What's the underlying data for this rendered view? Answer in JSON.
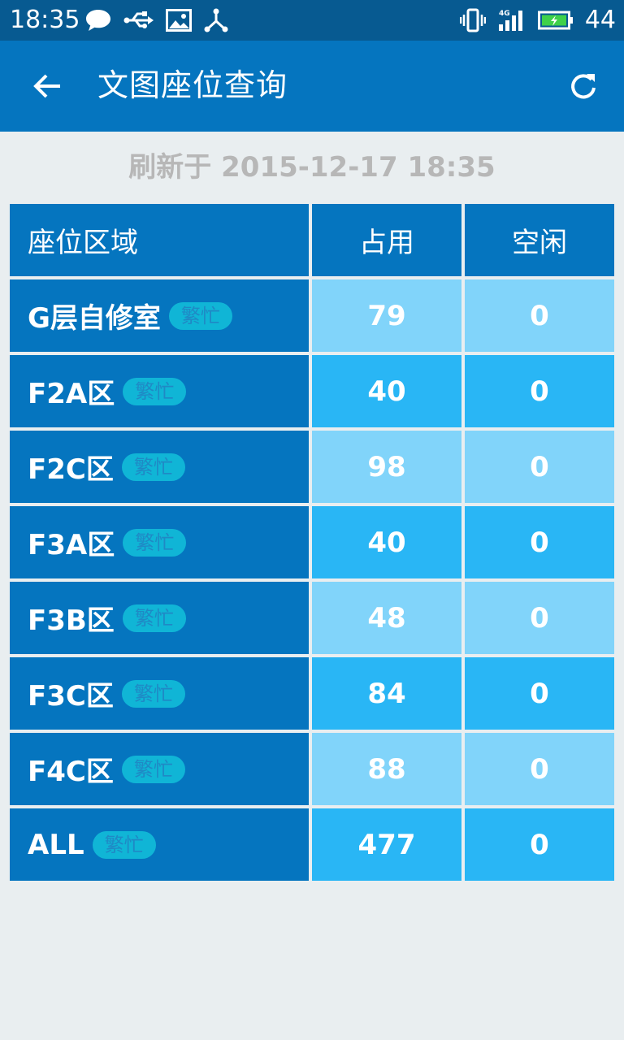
{
  "status_bar": {
    "time": "18:35",
    "battery_level": "44",
    "icons_left": [
      "chat-bubble-icon",
      "usb-icon",
      "image-icon",
      "share-icon"
    ],
    "icons_right": [
      "vibrate-icon",
      "signal-4g-icon",
      "battery-charging-icon"
    ],
    "network_label": "4G"
  },
  "app_bar": {
    "title": "文图座位查询",
    "back_icon": "arrow-left-icon",
    "refresh_icon": "refresh-icon"
  },
  "refresh_time": "刷新于 2015-12-17 18:35",
  "table": {
    "headers": [
      "座位区域",
      "占用",
      "空闲"
    ],
    "rows": [
      {
        "area": "G层自修室",
        "status": "繁忙",
        "occupied": "79",
        "free": "0"
      },
      {
        "area": "F2A区",
        "status": "繁忙",
        "occupied": "40",
        "free": "0"
      },
      {
        "area": "F2C区",
        "status": "繁忙",
        "occupied": "98",
        "free": "0"
      },
      {
        "area": "F3A区",
        "status": "繁忙",
        "occupied": "40",
        "free": "0"
      },
      {
        "area": "F3B区",
        "status": "繁忙",
        "occupied": "48",
        "free": "0"
      },
      {
        "area": "F3C区",
        "status": "繁忙",
        "occupied": "84",
        "free": "0"
      },
      {
        "area": "F4C区",
        "status": "繁忙",
        "occupied": "88",
        "free": "0"
      },
      {
        "area": "ALL",
        "status": "繁忙",
        "occupied": "477",
        "free": "0"
      }
    ]
  },
  "colors": {
    "status_bar_bg": "#075a91",
    "app_bar_bg": "#0575bf",
    "cell_light": "#81d4fa",
    "cell_mid": "#29b6f5",
    "badge_bg": "#10b5d6",
    "page_bg": "#e9eef0"
  }
}
